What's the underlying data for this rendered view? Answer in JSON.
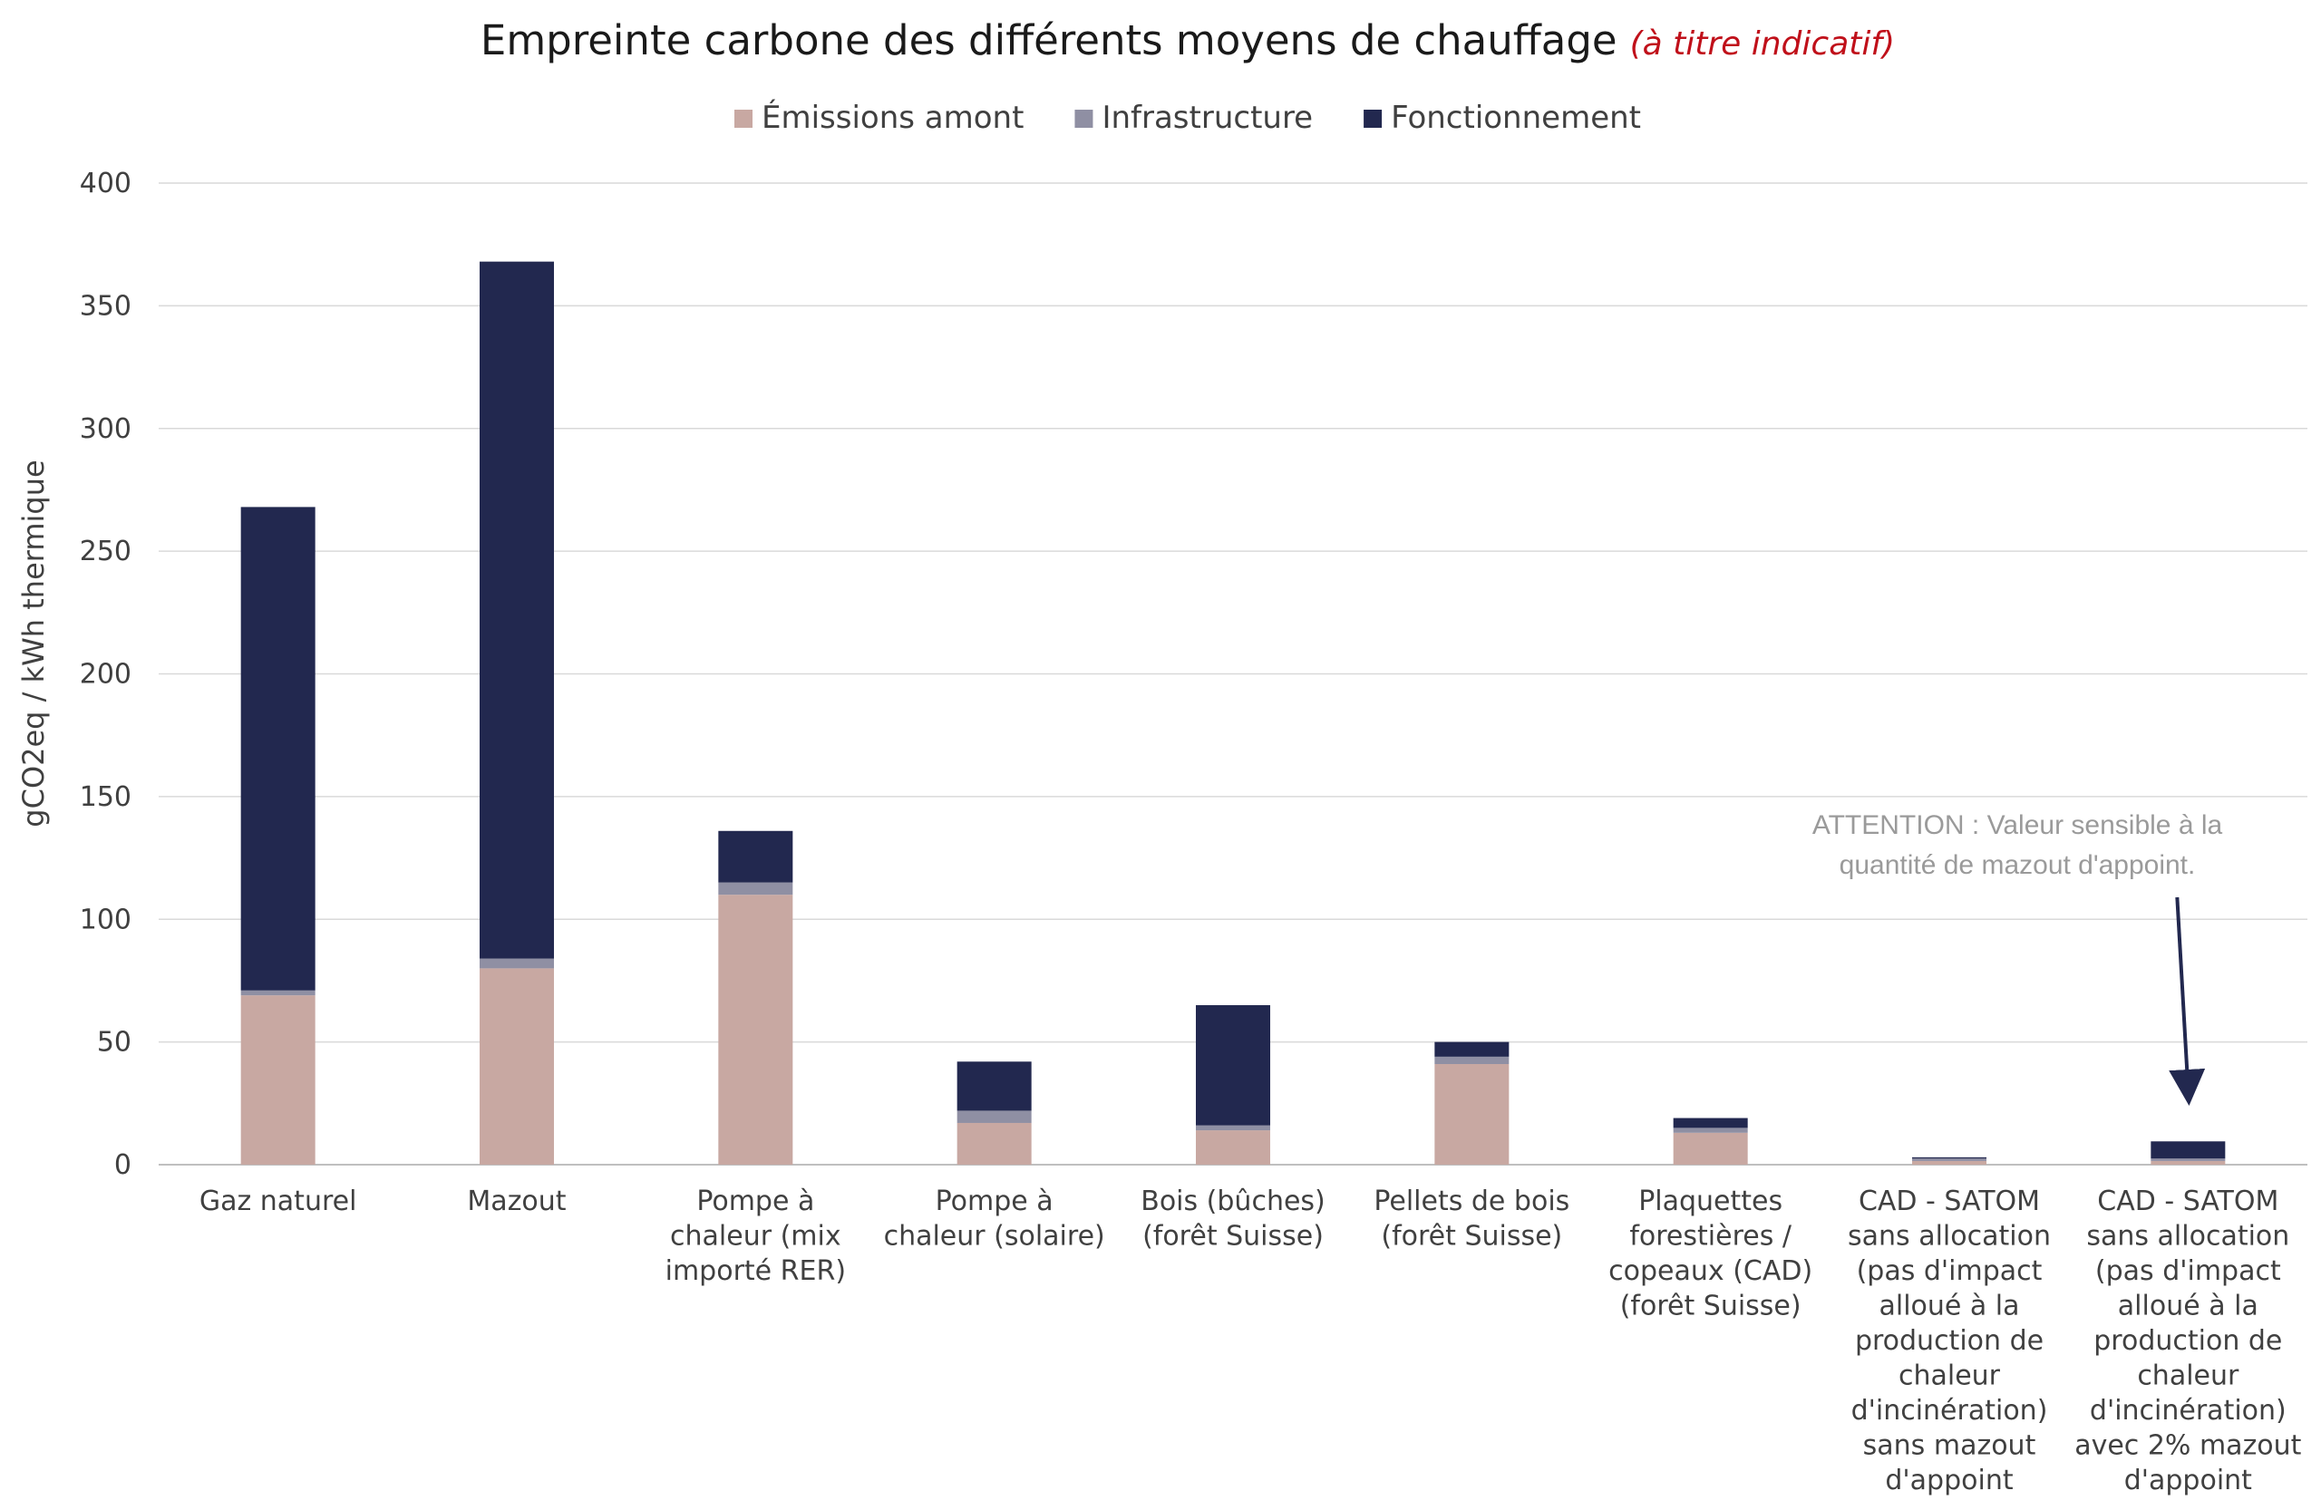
{
  "chart_data": {
    "type": "bar",
    "stacked": true,
    "title": "Empreinte carbone des différents moyens de chauffage",
    "subtitle": "(à titre indicatif)",
    "ylabel": "gCO2eq / kWh thermique",
    "xlabel": "",
    "ylim": [
      0,
      400
    ],
    "yticks": [
      0,
      50,
      100,
      150,
      200,
      250,
      300,
      350,
      400
    ],
    "grid": true,
    "legend_position": "top",
    "categories": [
      [
        "Gaz naturel"
      ],
      [
        "Mazout"
      ],
      [
        "Pompe à",
        "chaleur (mix",
        "importé RER)"
      ],
      [
        "Pompe à",
        "chaleur (solaire)"
      ],
      [
        "Bois (bûches)",
        "(forêt Suisse)"
      ],
      [
        "Pellets de bois",
        "(forêt Suisse)"
      ],
      [
        "Plaquettes",
        "forestières /",
        "copeaux (CAD)",
        "(forêt Suisse)"
      ],
      [
        "CAD - SATOM",
        "sans allocation",
        "(pas d'impact",
        "alloué à la",
        "production de",
        "chaleur",
        "d'incinération)",
        "sans mazout",
        "d'appoint"
      ],
      [
        "CAD - SATOM",
        "sans allocation",
        "(pas d'impact",
        "alloué à la",
        "production de",
        "chaleur",
        "d'incinération)",
        "avec 2% mazout",
        "d'appoint"
      ]
    ],
    "series": [
      {
        "name": "Émissions amont",
        "color": "#c8a8a2",
        "values": [
          69,
          80,
          110,
          17,
          14,
          41,
          13,
          1.5,
          1.5
        ]
      },
      {
        "name": "Infrastructure",
        "color": "#8f8fa3",
        "values": [
          2,
          4,
          5,
          5,
          2,
          3,
          2,
          1,
          1
        ]
      },
      {
        "name": "Fonctionnement",
        "color": "#22284f",
        "values": [
          197,
          284,
          21,
          20,
          49,
          6,
          4,
          0.5,
          7
        ]
      }
    ],
    "annotation": {
      "lines": [
        "ATTENTION : Valeur sensible à la",
        "quantité de mazout d'appoint."
      ],
      "color": "#9a9a9a",
      "arrow_color": "#22284f",
      "target_category_index": 8
    }
  }
}
